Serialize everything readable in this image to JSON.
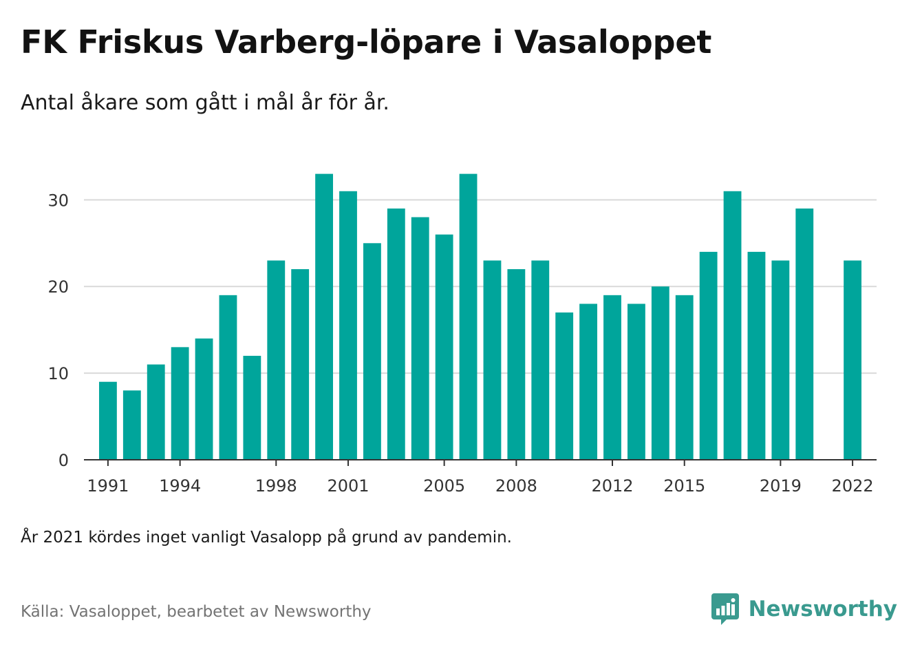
{
  "header": {
    "title": "FK Friskus Varberg-löpare i Vasaloppet",
    "subtitle": "Antal åkare som gått i mål år för år."
  },
  "footer": {
    "note": "År 2021 kördes inget vanligt Vasalopp på grund av pandemin.",
    "source": "Källa: Vasaloppet, bearbetet av Newsworthy",
    "brand": "Newsworthy",
    "brand_color": "#3a9a8f",
    "brand_icon": "bar-chart-speech-bubble-icon"
  },
  "chart_data": {
    "type": "bar",
    "title": "",
    "xlabel": "",
    "ylabel": "",
    "bar_color": "#00a59b",
    "grid": true,
    "ylim": [
      0,
      34
    ],
    "yticks": [
      0,
      10,
      20,
      30
    ],
    "xticks": [
      1991,
      1994,
      1998,
      2001,
      2005,
      2008,
      2012,
      2015,
      2019,
      2022
    ],
    "xlim": [
      1990,
      2023
    ],
    "data": [
      {
        "year": 1991,
        "value": 9
      },
      {
        "year": 1992,
        "value": 8
      },
      {
        "year": 1993,
        "value": 11
      },
      {
        "year": 1994,
        "value": 13
      },
      {
        "year": 1995,
        "value": 14
      },
      {
        "year": 1996,
        "value": 19
      },
      {
        "year": 1997,
        "value": 12
      },
      {
        "year": 1998,
        "value": 23
      },
      {
        "year": 1999,
        "value": 22
      },
      {
        "year": 2000,
        "value": 33
      },
      {
        "year": 2001,
        "value": 31
      },
      {
        "year": 2002,
        "value": 25
      },
      {
        "year": 2003,
        "value": 29
      },
      {
        "year": 2004,
        "value": 28
      },
      {
        "year": 2005,
        "value": 26
      },
      {
        "year": 2006,
        "value": 33
      },
      {
        "year": 2007,
        "value": 23
      },
      {
        "year": 2008,
        "value": 22
      },
      {
        "year": 2009,
        "value": 23
      },
      {
        "year": 2010,
        "value": 17
      },
      {
        "year": 2011,
        "value": 18
      },
      {
        "year": 2012,
        "value": 19
      },
      {
        "year": 2013,
        "value": 18
      },
      {
        "year": 2014,
        "value": 20
      },
      {
        "year": 2015,
        "value": 19
      },
      {
        "year": 2016,
        "value": 24
      },
      {
        "year": 2017,
        "value": 31
      },
      {
        "year": 2018,
        "value": 24
      },
      {
        "year": 2019,
        "value": 23
      },
      {
        "year": 2020,
        "value": 29
      },
      {
        "year": 2022,
        "value": 23
      }
    ]
  }
}
